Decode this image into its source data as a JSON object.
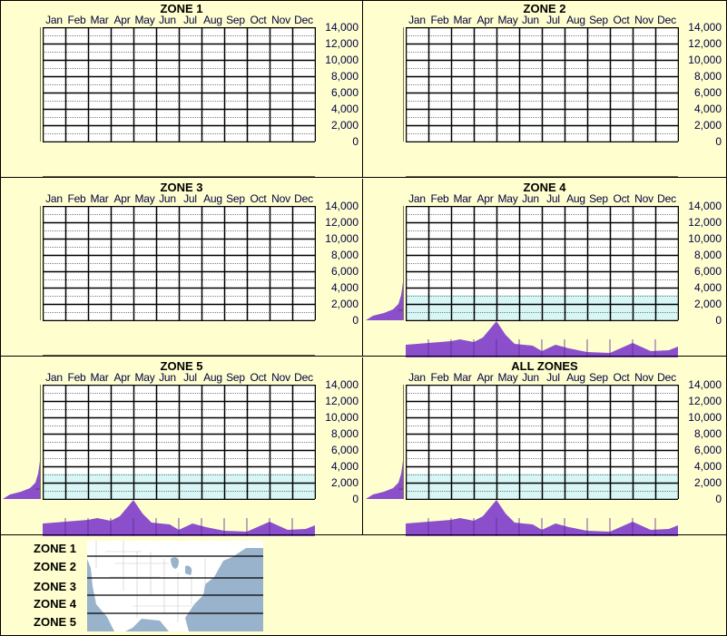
{
  "months": [
    "Jan",
    "Feb",
    "Mar",
    "Apr",
    "May",
    "Jun",
    "Jul",
    "Aug",
    "Sep",
    "Oct",
    "Nov",
    "Dec"
  ],
  "y_ticks": [
    "14,000",
    "12,000",
    "10,000",
    "8,000",
    "6,000",
    "4,000",
    "2,000",
    "0"
  ],
  "panels": [
    {
      "title": "ZONE 1",
      "has_data": false
    },
    {
      "title": "ZONE 2",
      "has_data": false
    },
    {
      "title": "ZONE 3",
      "has_data": false
    },
    {
      "title": "ZONE 4",
      "has_data": true
    },
    {
      "title": "ZONE 5",
      "has_data": true
    },
    {
      "title": "ALL ZONES",
      "has_data": true
    }
  ],
  "legend": {
    "zones": [
      "ZONE 1",
      "ZONE 2",
      "ZONE 3",
      "ZONE 4",
      "ZONE 5"
    ]
  },
  "colors": {
    "background": "#ffffd0",
    "marginal_fill": "#8b4fcc",
    "heat_low": "#e0f8f8",
    "heat_mid": "#0050b0",
    "heat_peak": "#ff1080",
    "map_water": "#9ab3cc"
  },
  "chart_data": [
    {
      "type": "heatmap",
      "title": "ZONE 1",
      "categories": [
        "Jan",
        "Feb",
        "Mar",
        "Apr",
        "May",
        "Jun",
        "Jul",
        "Aug",
        "Sep",
        "Oct",
        "Nov",
        "Dec"
      ],
      "ylim": [
        0,
        14000
      ],
      "ylabel": "",
      "values": []
    },
    {
      "type": "heatmap",
      "title": "ZONE 2",
      "categories": [
        "Jan",
        "Feb",
        "Mar",
        "Apr",
        "May",
        "Jun",
        "Jul",
        "Aug",
        "Sep",
        "Oct",
        "Nov",
        "Dec"
      ],
      "ylim": [
        0,
        14000
      ],
      "values": []
    },
    {
      "type": "heatmap",
      "title": "ZONE 3",
      "categories": [
        "Jan",
        "Feb",
        "Mar",
        "Apr",
        "May",
        "Jun",
        "Jul",
        "Aug",
        "Sep",
        "Oct",
        "Nov",
        "Dec"
      ],
      "ylim": [
        0,
        14000
      ],
      "values": []
    },
    {
      "type": "heatmap",
      "title": "ZONE 4",
      "categories": [
        "Jan",
        "Feb",
        "Mar",
        "Apr",
        "May",
        "Jun",
        "Jul",
        "Aug",
        "Sep",
        "Oct",
        "Nov",
        "Dec"
      ],
      "ylim": [
        0,
        14000
      ],
      "monthly_density": [
        0.25,
        0.3,
        0.32,
        0.25,
        1.0,
        0.35,
        0.3,
        0.22,
        0.15,
        0.3,
        0.12,
        0.18
      ],
      "elevation_density_peak": 0,
      "peak": {
        "month": "Apr/May boundary",
        "elevation": 0
      }
    },
    {
      "type": "heatmap",
      "title": "ZONE 5",
      "categories": [
        "Jan",
        "Feb",
        "Mar",
        "Apr",
        "May",
        "Jun",
        "Jul",
        "Aug",
        "Sep",
        "Oct",
        "Nov",
        "Dec"
      ],
      "ylim": [
        0,
        14000
      ],
      "monthly_density": [
        0.25,
        0.3,
        0.32,
        0.25,
        1.0,
        0.35,
        0.3,
        0.22,
        0.15,
        0.3,
        0.12,
        0.18
      ],
      "peak": {
        "month": "Apr/May boundary",
        "elevation": 0
      }
    },
    {
      "type": "heatmap",
      "title": "ALL ZONES",
      "categories": [
        "Jan",
        "Feb",
        "Mar",
        "Apr",
        "May",
        "Jun",
        "Jul",
        "Aug",
        "Sep",
        "Oct",
        "Nov",
        "Dec"
      ],
      "ylim": [
        0,
        14000
      ],
      "monthly_density": [
        0.25,
        0.3,
        0.32,
        0.25,
        1.0,
        0.35,
        0.3,
        0.22,
        0.15,
        0.3,
        0.12,
        0.18
      ],
      "peak": {
        "month": "Apr/May boundary",
        "elevation": 0
      }
    }
  ]
}
